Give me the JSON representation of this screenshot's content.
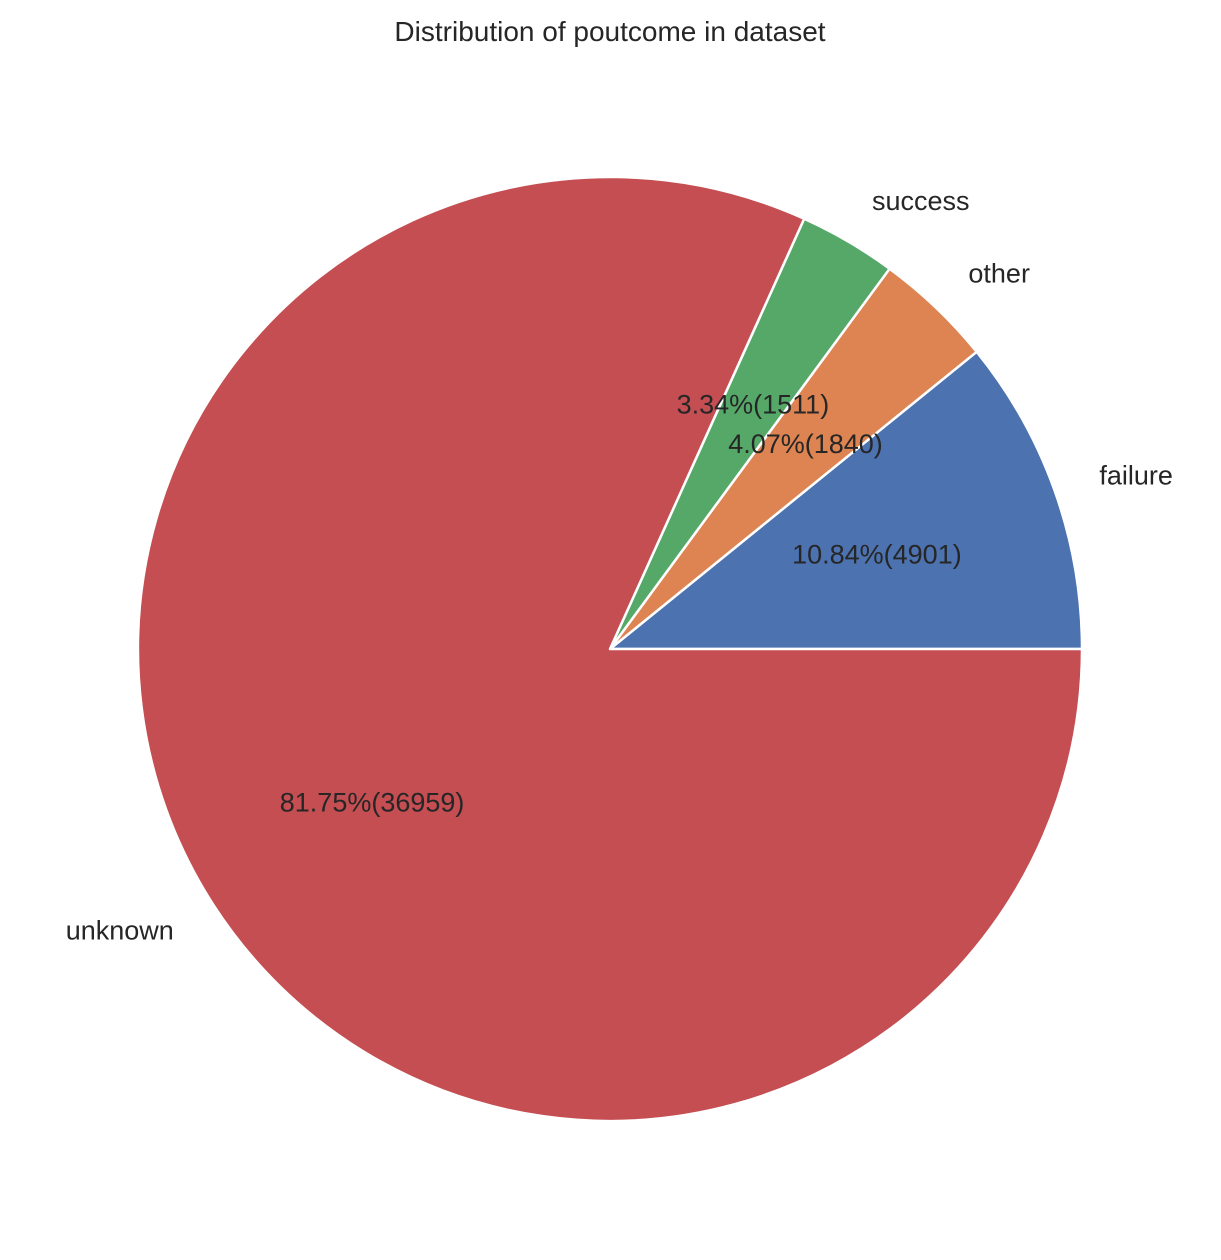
{
  "chart_data": {
    "type": "pie",
    "title": "Distribution of poutcome in dataset",
    "slices": [
      {
        "label": "failure",
        "value": 4901,
        "percent_label": "10.84%(4901)",
        "color": "#4c72b0"
      },
      {
        "label": "other",
        "value": 1840,
        "percent_label": "4.07%(1840)",
        "color": "#dd8452"
      },
      {
        "label": "success",
        "value": 1511,
        "percent_label": "3.34%(1511)",
        "color": "#55a868"
      },
      {
        "label": "unknown",
        "value": 36959,
        "percent_label": "81.75%(36959)",
        "color": "#c44e52"
      }
    ],
    "start_angle_deg": 0,
    "direction": "counterclockwise",
    "legend": "none"
  }
}
